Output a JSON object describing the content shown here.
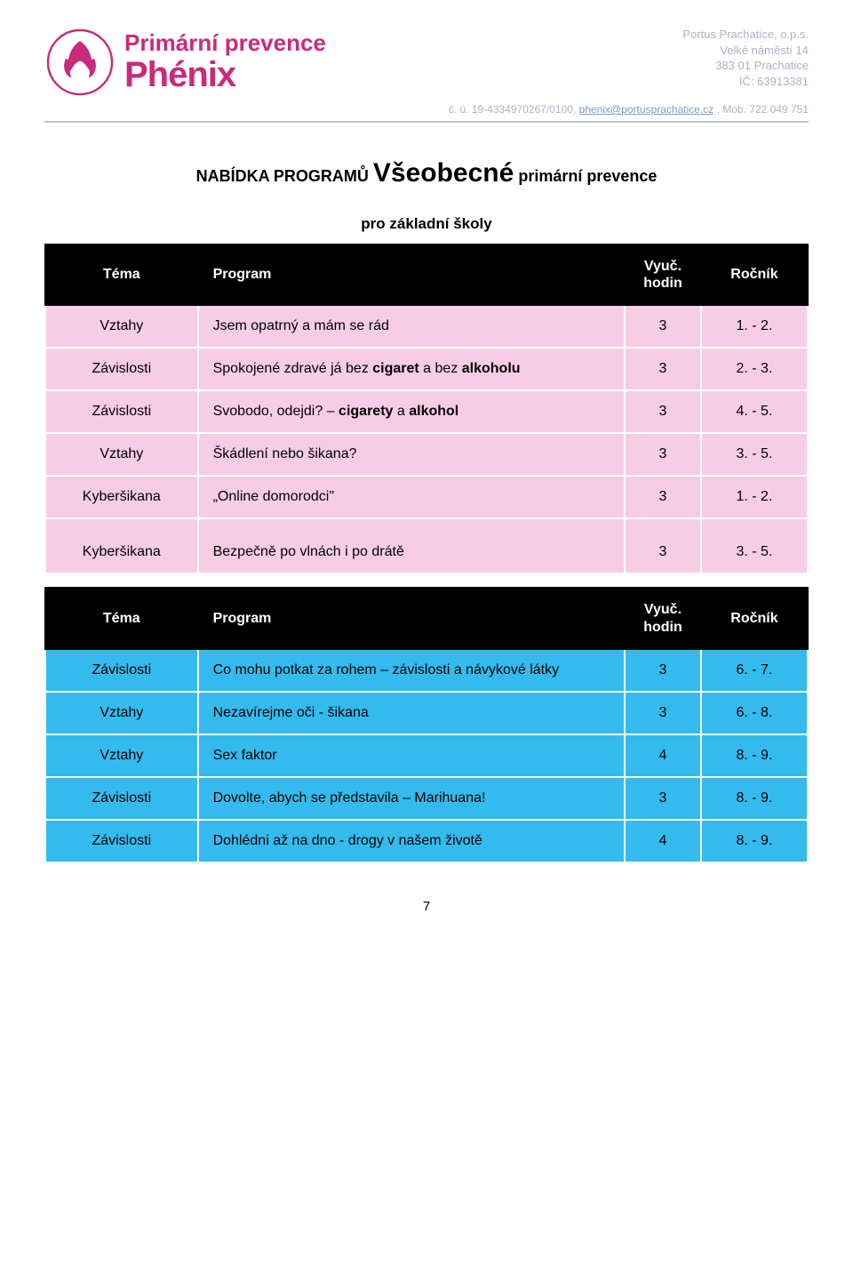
{
  "header": {
    "logo_line1": "Primární prevence",
    "logo_line2": "Phénix",
    "org": {
      "name": "Portus Prachatice, o.p.s.",
      "addr1": "Velké náměstí 14",
      "addr2": "383 01 Prachatice",
      "ic": "IČ: 63913381"
    },
    "contact_prefix": "č. ú. 19-4334970267/0100, ",
    "email": "phenix@portusprachatice.cz",
    "contact_suffix": " , Mob. 722 049 751"
  },
  "title": {
    "caps": "NABÍDKA PROGRAMŮ ",
    "big": "Všeobecné",
    "rest": " primární prevence",
    "subtitle": "pro základní školy"
  },
  "table_headers": {
    "tema": "Téma",
    "program": "Program",
    "hodin1": "Vyuč.",
    "hodin2": "hodin",
    "rocnik": "Ročník"
  },
  "table1": [
    {
      "tema": "Vztahy",
      "program": "Jsem opatrný a mám se rád",
      "hodin": "3",
      "rocnik": "1. - 2."
    },
    {
      "tema": "Závislosti",
      "program_pre": "Spokojené zdravé já bez ",
      "program_b1": "cigaret",
      "program_mid": " a bez ",
      "program_b2": "alkoholu",
      "hodin": "3",
      "rocnik": "2. - 3."
    },
    {
      "tema": "Závislosti",
      "program_pre": "Svobodo, odejdi? – ",
      "program_b1": "cigarety",
      "program_mid": " a ",
      "program_b2": "alkohol",
      "hodin": "3",
      "rocnik": "4. - 5."
    },
    {
      "tema": "Vztahy",
      "program": "Škádlení nebo šikana?",
      "hodin": "3",
      "rocnik": "3. - 5."
    },
    {
      "tema": "Kyberšikana",
      "program": "„Online domorodci\"",
      "hodin": "3",
      "rocnik": "1. - 2."
    },
    {
      "tema": "Kyberšikana",
      "program": "Bezpečně po vlnách i po drátě",
      "hodin": "3",
      "rocnik": "3. - 5."
    }
  ],
  "table2": [
    {
      "tema": "Závislosti",
      "program": "Co mohu potkat za rohem – závislosti a návykové látky",
      "hodin": "3",
      "rocnik": "6. - 7."
    },
    {
      "tema": "Vztahy",
      "program": "Nezavírejme oči - šikana",
      "hodin": "3",
      "rocnik": "6. - 8."
    },
    {
      "tema": "Vztahy",
      "program": "Sex faktor",
      "hodin": "4",
      "rocnik": "8. - 9."
    },
    {
      "tema": "Závislosti",
      "program": "Dovolte, abych se představila – Marihuana!",
      "hodin": "3",
      "rocnik": "8. - 9."
    },
    {
      "tema": "Závislosti",
      "program": "Dohlédni až na dno - drogy v našem životě",
      "hodin": "4",
      "rocnik": "8. - 9."
    }
  ],
  "page_number": "7",
  "colors": {
    "brand": "#c92b7a",
    "pink_row": "#f7cde5",
    "blue_row": "#33bbee",
    "header_bg": "#000000",
    "header_fg": "#ffffff",
    "org_text": "#a8b5c4"
  }
}
